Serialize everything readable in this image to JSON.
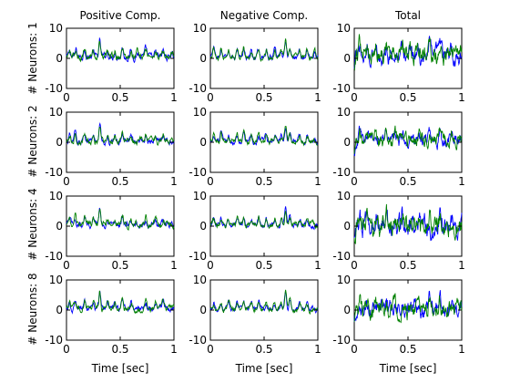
{
  "chart_data": {
    "type": "line",
    "column_titles": [
      "Positive Comp.",
      "Negative Comp.",
      "Total"
    ],
    "row_labels": [
      "# Neurons: 1",
      "# Neurons: 2",
      "# Neurons: 4",
      "# Neurons: 8"
    ],
    "xlabel": "Time [sec]",
    "xlim": [
      0,
      1
    ],
    "ylim": [
      -10,
      10
    ],
    "xticks": [
      "0",
      "0.5",
      "1"
    ],
    "yticks": [
      "10",
      "0",
      "-10"
    ],
    "series_colors": [
      "#0000ff",
      "#008000"
    ],
    "grid": false,
    "legend": "none",
    "panels": [
      {
        "row": 0,
        "col": 0,
        "peaks": [
          [
            0.03,
            1.8
          ],
          [
            0.09,
            2.2
          ],
          [
            0.17,
            3.0
          ],
          [
            0.25,
            2.0
          ],
          [
            0.31,
            5.0
          ],
          [
            0.38,
            2.0
          ],
          [
            0.45,
            1.8
          ],
          [
            0.52,
            3.0
          ],
          [
            0.6,
            2.0
          ],
          [
            0.66,
            1.5
          ],
          [
            0.74,
            2.5
          ],
          [
            0.83,
            1.5
          ],
          [
            0.9,
            2.0
          ],
          [
            0.98,
            1.6
          ]
        ],
        "noise": 1.0,
        "bias": 0.5
      },
      {
        "row": 0,
        "col": 1,
        "peaks": [
          [
            0.03,
            3.0
          ],
          [
            0.1,
            2.5
          ],
          [
            0.17,
            2.0
          ],
          [
            0.25,
            2.5
          ],
          [
            0.31,
            3.0
          ],
          [
            0.38,
            2.0
          ],
          [
            0.45,
            3.0
          ],
          [
            0.52,
            2.0
          ],
          [
            0.6,
            2.5
          ],
          [
            0.66,
            2.0
          ],
          [
            0.7,
            5.0
          ],
          [
            0.74,
            3.0
          ],
          [
            0.83,
            2.0
          ],
          [
            0.9,
            2.5
          ],
          [
            0.97,
            2.0
          ]
        ],
        "noise": 0.8,
        "bias": 0.3
      },
      {
        "row": 0,
        "col": 2,
        "peaks": [
          [
            0.05,
            4.0
          ],
          [
            0.12,
            3.0
          ],
          [
            0.2,
            3.0
          ],
          [
            0.3,
            5.0
          ],
          [
            0.38,
            2.0
          ],
          [
            0.45,
            3.0
          ],
          [
            0.52,
            3.0
          ],
          [
            0.6,
            2.5
          ],
          [
            0.7,
            4.0
          ],
          [
            0.8,
            3.0
          ],
          [
            0.9,
            2.5
          ]
        ],
        "noise": 2.5,
        "bias": 1.0
      },
      {
        "row": 1,
        "col": 0,
        "peaks": [
          [
            0.03,
            2.0
          ],
          [
            0.08,
            2.5
          ],
          [
            0.17,
            3.0
          ],
          [
            0.25,
            2.0
          ],
          [
            0.31,
            5.0
          ],
          [
            0.38,
            2.0
          ],
          [
            0.45,
            2.0
          ],
          [
            0.52,
            3.0
          ],
          [
            0.6,
            2.0
          ],
          [
            0.74,
            2.0
          ],
          [
            0.83,
            1.5
          ],
          [
            0.9,
            2.0
          ]
        ],
        "noise": 0.9,
        "bias": 0.3
      },
      {
        "row": 1,
        "col": 1,
        "peaks": [
          [
            0.03,
            2.0
          ],
          [
            0.1,
            2.5
          ],
          [
            0.17,
            2.0
          ],
          [
            0.25,
            2.5
          ],
          [
            0.31,
            3.0
          ],
          [
            0.38,
            2.0
          ],
          [
            0.45,
            2.5
          ],
          [
            0.52,
            2.0
          ],
          [
            0.6,
            2.0
          ],
          [
            0.66,
            2.0
          ],
          [
            0.7,
            5.0
          ],
          [
            0.74,
            3.0
          ],
          [
            0.83,
            2.0
          ],
          [
            0.9,
            2.0
          ]
        ],
        "noise": 0.8,
        "bias": 0.3
      },
      {
        "row": 1,
        "col": 2,
        "peaks": [
          [
            0.05,
            3.0
          ],
          [
            0.12,
            3.0
          ],
          [
            0.2,
            3.0
          ],
          [
            0.3,
            5.0
          ],
          [
            0.38,
            2.0
          ],
          [
            0.45,
            3.0
          ],
          [
            0.52,
            2.0
          ],
          [
            0.6,
            2.5
          ],
          [
            0.7,
            4.0
          ],
          [
            0.8,
            3.0
          ],
          [
            0.9,
            2.0
          ]
        ],
        "noise": 2.0,
        "bias": 0.5
      },
      {
        "row": 2,
        "col": 0,
        "peaks": [
          [
            0.03,
            2.0
          ],
          [
            0.08,
            2.5
          ],
          [
            0.17,
            3.0
          ],
          [
            0.25,
            2.0
          ],
          [
            0.31,
            5.0
          ],
          [
            0.38,
            2.0
          ],
          [
            0.45,
            2.0
          ],
          [
            0.52,
            3.0
          ],
          [
            0.6,
            2.0
          ],
          [
            0.74,
            2.0
          ],
          [
            0.83,
            1.5
          ],
          [
            0.9,
            2.0
          ]
        ],
        "noise": 0.9,
        "bias": 0.5
      },
      {
        "row": 2,
        "col": 1,
        "peaks": [
          [
            0.03,
            2.0
          ],
          [
            0.1,
            2.0
          ],
          [
            0.17,
            2.0
          ],
          [
            0.25,
            2.0
          ],
          [
            0.31,
            2.5
          ],
          [
            0.38,
            2.0
          ],
          [
            0.45,
            2.5
          ],
          [
            0.52,
            2.0
          ],
          [
            0.6,
            2.0
          ],
          [
            0.66,
            2.0
          ],
          [
            0.7,
            5.0
          ],
          [
            0.74,
            3.0
          ],
          [
            0.83,
            2.0
          ],
          [
            0.9,
            2.0
          ]
        ],
        "noise": 0.8,
        "bias": 0.3
      },
      {
        "row": 2,
        "col": 2,
        "peaks": [
          [
            0.05,
            3.0
          ],
          [
            0.12,
            3.0
          ],
          [
            0.2,
            3.0
          ],
          [
            0.3,
            5.0
          ],
          [
            0.38,
            2.5
          ],
          [
            0.45,
            3.0
          ],
          [
            0.52,
            2.0
          ],
          [
            0.6,
            3.0
          ],
          [
            0.7,
            3.5
          ],
          [
            0.8,
            3.0
          ],
          [
            0.9,
            2.0
          ]
        ],
        "noise": 3.0,
        "bias": 0.0
      },
      {
        "row": 3,
        "col": 0,
        "peaks": [
          [
            0.03,
            2.0
          ],
          [
            0.08,
            2.5
          ],
          [
            0.17,
            3.0
          ],
          [
            0.25,
            2.0
          ],
          [
            0.31,
            5.5
          ],
          [
            0.38,
            2.0
          ],
          [
            0.45,
            2.0
          ],
          [
            0.52,
            3.0
          ],
          [
            0.6,
            2.0
          ],
          [
            0.74,
            2.0
          ],
          [
            0.83,
            1.5
          ],
          [
            0.9,
            2.0
          ]
        ],
        "noise": 0.9,
        "bias": 0.5
      },
      {
        "row": 3,
        "col": 1,
        "peaks": [
          [
            0.03,
            2.0
          ],
          [
            0.1,
            2.0
          ],
          [
            0.17,
            2.0
          ],
          [
            0.25,
            2.0
          ],
          [
            0.31,
            2.5
          ],
          [
            0.38,
            2.0
          ],
          [
            0.45,
            2.5
          ],
          [
            0.52,
            2.0
          ],
          [
            0.6,
            2.0
          ],
          [
            0.66,
            2.0
          ],
          [
            0.7,
            5.5
          ],
          [
            0.74,
            3.0
          ],
          [
            0.83,
            2.0
          ],
          [
            0.9,
            2.0
          ]
        ],
        "noise": 0.8,
        "bias": 0.3
      },
      {
        "row": 3,
        "col": 2,
        "peaks": [
          [
            0.05,
            3.0
          ],
          [
            0.12,
            3.0
          ],
          [
            0.2,
            3.0
          ],
          [
            0.3,
            5.0
          ],
          [
            0.38,
            2.5
          ],
          [
            0.45,
            3.0
          ],
          [
            0.52,
            2.0
          ],
          [
            0.6,
            3.0
          ],
          [
            0.7,
            3.5
          ],
          [
            0.8,
            3.0
          ],
          [
            0.9,
            2.0
          ]
        ],
        "noise": 2.5,
        "bias": 0.0
      }
    ]
  }
}
